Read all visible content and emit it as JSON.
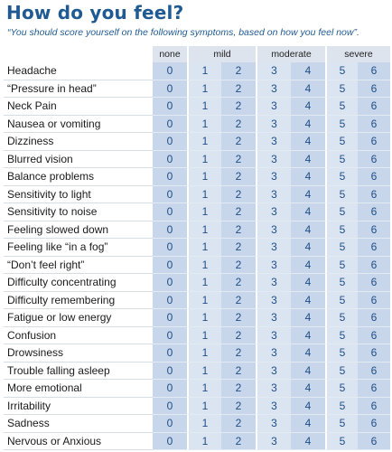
{
  "title": "How do you feel?",
  "subtitle": "“You should score yourself on the following symptoms, based on how you feel now”.",
  "scale_headers": [
    "none",
    "mild",
    "moderate",
    "severe"
  ],
  "scale_values": [
    "0",
    "1",
    "2",
    "3",
    "4",
    "5",
    "6"
  ],
  "symptoms": [
    "Headache",
    "“Pressure in head”",
    "Neck Pain",
    "Nausea or vomiting",
    "Dizziness",
    "Blurred vision",
    "Balance problems",
    "Sensitivity to light",
    "Sensitivity to noise",
    "Feeling slowed down",
    "Feeling like “in a fog”",
    "“Don’t feel right”",
    "Difficulty concentrating",
    "Difficulty remembering",
    "Fatigue or low energy",
    "Confusion",
    "Drowsiness",
    "Trouble falling asleep",
    "More emotional",
    "Irritability",
    "Sadness",
    "Nervous or Anxious"
  ]
}
